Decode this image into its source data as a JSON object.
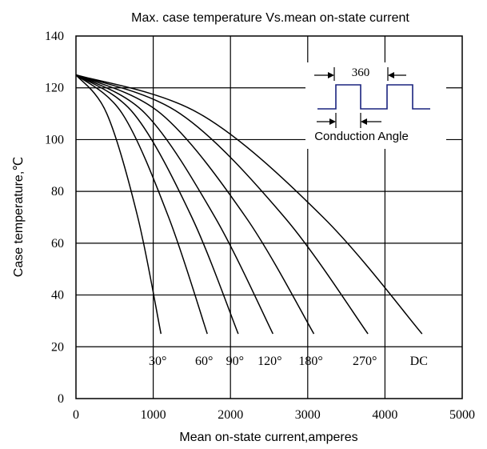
{
  "chart_data": {
    "type": "line",
    "title": "Max. case temperature  Vs.mean on-state current",
    "xlabel": "Mean on-state current,amperes",
    "ylabel": "Case temperature,℃",
    "xlim": [
      0,
      5000
    ],
    "ylim": [
      0,
      140
    ],
    "x_ticks": [
      "0",
      "1000",
      "2000",
      "3000",
      "4000",
      "5000"
    ],
    "y_ticks": [
      "0",
      "20",
      "40",
      "60",
      "80",
      "100",
      "120",
      "140"
    ],
    "grid": true,
    "series": [
      {
        "name": "30°",
        "x": [
          0,
          400,
          800,
          1100
        ],
        "y": [
          125,
          110,
          70,
          25
        ]
      },
      {
        "name": "60°",
        "x": [
          0,
          600,
          1200,
          1700
        ],
        "y": [
          125,
          110,
          70,
          25
        ]
      },
      {
        "name": "90°",
        "x": [
          0,
          750,
          1500,
          2100
        ],
        "y": [
          125,
          110,
          70,
          25
        ]
      },
      {
        "name": "120°",
        "x": [
          0,
          900,
          1800,
          2550
        ],
        "y": [
          125,
          110,
          70,
          25
        ]
      },
      {
        "name": "180°",
        "x": [
          0,
          1100,
          2200,
          3080
        ],
        "y": [
          125,
          110,
          70,
          25
        ]
      },
      {
        "name": "270°",
        "x": [
          0,
          1350,
          2700,
          3780
        ],
        "y": [
          125,
          110,
          70,
          25
        ]
      },
      {
        "name": "DC",
        "x": [
          0,
          1600,
          3200,
          4480
        ],
        "y": [
          125,
          110,
          70,
          25
        ]
      }
    ],
    "inset": {
      "period_label": "360",
      "conduction_label": "Conduction  Angle",
      "waveform_color": "#1a237e"
    }
  }
}
